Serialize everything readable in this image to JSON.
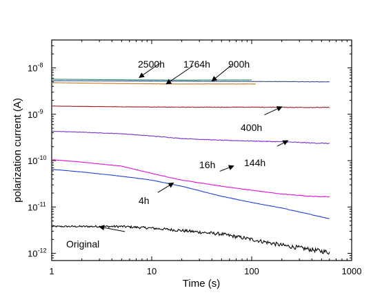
{
  "chart_data": {
    "type": "line",
    "title": "",
    "xlabel": "Time (s)",
    "ylabel": "polarization current (A)",
    "xscale": "log",
    "yscale": "log",
    "xlim": [
      1,
      1000
    ],
    "ylim": [
      7e-13,
      4e-08
    ],
    "grid": false,
    "x_tick_labels": [
      "1",
      "10",
      "100",
      "1000"
    ],
    "y_tick_labels": [
      {
        "base": "10",
        "exp": "-12"
      },
      {
        "base": "10",
        "exp": "-11"
      },
      {
        "base": "10",
        "exp": "-10"
      },
      {
        "base": "10",
        "exp": "-9"
      },
      {
        "base": "10",
        "exp": "-8"
      }
    ],
    "series": [
      {
        "name": "Original",
        "color": "#000000",
        "noise": 0.1,
        "x": [
          1,
          2,
          5,
          10,
          20,
          50,
          100,
          200,
          400,
          600
        ],
        "y": [
          3.8e-12,
          3.8e-12,
          3.8e-12,
          3.5e-12,
          3.1e-12,
          2.6e-12,
          2e-12,
          1.5e-12,
          1.2e-12,
          1.05e-12
        ]
      },
      {
        "name": "4h",
        "color": "#1f3fd6",
        "noise": 0.01,
        "x": [
          1,
          2,
          5,
          10,
          20,
          50,
          100,
          200,
          400,
          600
        ],
        "y": [
          6.5e-11,
          5.7e-11,
          4.6e-11,
          3.8e-11,
          2.8e-11,
          1.7e-11,
          1.25e-11,
          9.5e-12,
          6.8e-12,
          5.6e-12
        ]
      },
      {
        "name": "16h",
        "color": "#e010d8",
        "noise": 0.015,
        "x": [
          1,
          2,
          5,
          10,
          20,
          50,
          100,
          200,
          400,
          600
        ],
        "y": [
          1.05e-10,
          9.3e-11,
          7.6e-11,
          5.3e-11,
          3.8e-11,
          2.8e-11,
          2.3e-11,
          1.9e-11,
          1.7e-11,
          1.65e-11
        ]
      },
      {
        "name": "144h",
        "color": "#7a2fd1",
        "noise": 0.02,
        "x": [
          1,
          2,
          5,
          10,
          20,
          50,
          100,
          200,
          400,
          600
        ],
        "y": [
          4.3e-10,
          4.1e-10,
          3.8e-10,
          3.4e-10,
          3e-10,
          2.75e-10,
          2.65e-10,
          2.55e-10,
          2.4e-10,
          2.35e-10
        ]
      },
      {
        "name": "400h",
        "color": "#9a1a1a",
        "noise": 0.015,
        "x": [
          1,
          5,
          20,
          100,
          600
        ],
        "y": [
          1.5e-09,
          1.45e-09,
          1.42e-09,
          1.42e-09,
          1.4e-09
        ]
      },
      {
        "name": "900h",
        "color": "#2a4a8f",
        "noise": 0.008,
        "x": [
          1,
          10,
          100,
          600
        ],
        "y": [
          5.3e-09,
          5.2e-09,
          5.1e-09,
          5e-09
        ]
      },
      {
        "name": "1764h",
        "color": "#c07a2a",
        "noise": 0.01,
        "x": [
          1,
          5,
          15,
          40,
          110
        ],
        "y": [
          4.8e-09,
          4.6e-09,
          4.5e-09,
          4.5e-09,
          4.5e-09
        ]
      },
      {
        "name": "2500h",
        "color": "#2f8f6f",
        "noise": 0.008,
        "x": [
          1,
          10,
          25,
          50,
          100
        ],
        "y": [
          5.7e-09,
          5.5e-09,
          5.45e-09,
          5.5e-09,
          5.5e-09
        ]
      }
    ],
    "annotations": [
      {
        "text": "2500h",
        "arrow_from": [
          12.0,
          1.25e-08
        ],
        "arrow_to": [
          7.5,
          6.2e-09
        ]
      },
      {
        "text": "1764h",
        "arrow_from": [
          26.0,
          1.12e-08
        ],
        "arrow_to": [
          14.0,
          4.5e-09
        ]
      },
      {
        "text": "900h",
        "arrow_from": [
          62.0,
          1.12e-08
        ],
        "arrow_to": [
          40.0,
          5.2e-09
        ]
      },
      {
        "text": "400h",
        "arrow_from": [
          134.0,
          9.7e-10
        ],
        "arrow_to": [
          200.0,
          1.45e-09
        ]
      },
      {
        "text": "144h",
        "arrow_from": [
          180.0,
          2.05e-10
        ],
        "arrow_to": [
          230.0,
          2.7e-10
        ]
      },
      {
        "text": "16h",
        "arrow_from": [
          48.0,
          5.9e-11
        ],
        "arrow_to": [
          66.0,
          7.7e-11
        ]
      },
      {
        "text": "4h",
        "arrow_from": [
          11.5,
          2.05e-11
        ],
        "arrow_to": [
          16.5,
          3.3e-11
        ]
      },
      {
        "text": "Original",
        "arrow_from": [
          5.4,
          2.95e-12
        ],
        "arrow_to": [
          3.0,
          3.75e-12
        ]
      }
    ]
  }
}
